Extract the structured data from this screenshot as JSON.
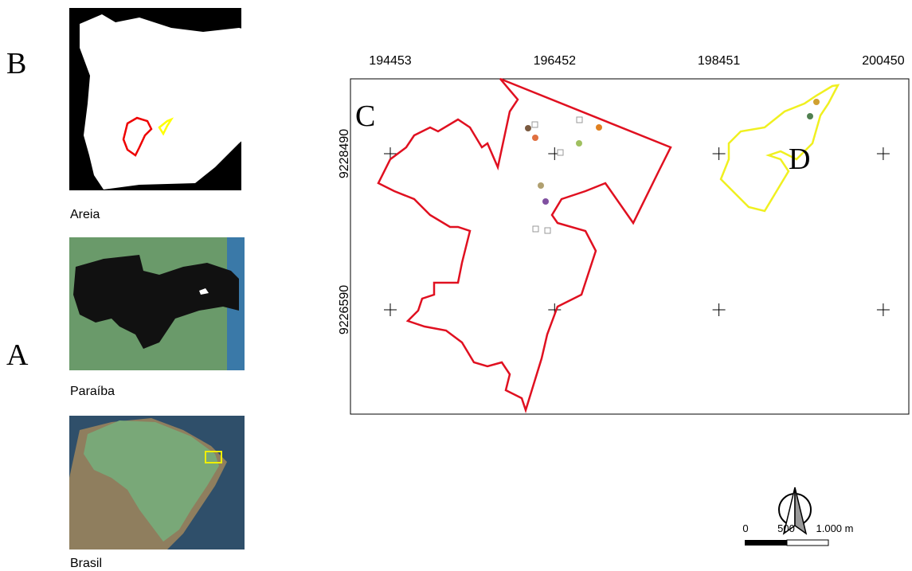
{
  "panels": [
    {
      "letter": "B",
      "caption": "Areia"
    },
    {
      "letter": "A",
      "caption": "Paraíba"
    },
    {
      "caption": "Brasil"
    }
  ],
  "main_map": {
    "letters": [
      "C",
      "D"
    ],
    "x_labels": [
      194453,
      196452,
      198451,
      200450
    ],
    "y_labels": [
      9228490,
      9226590
    ]
  },
  "scale_bar": {
    "labels": [
      "0",
      "500",
      "1.000 m"
    ]
  }
}
